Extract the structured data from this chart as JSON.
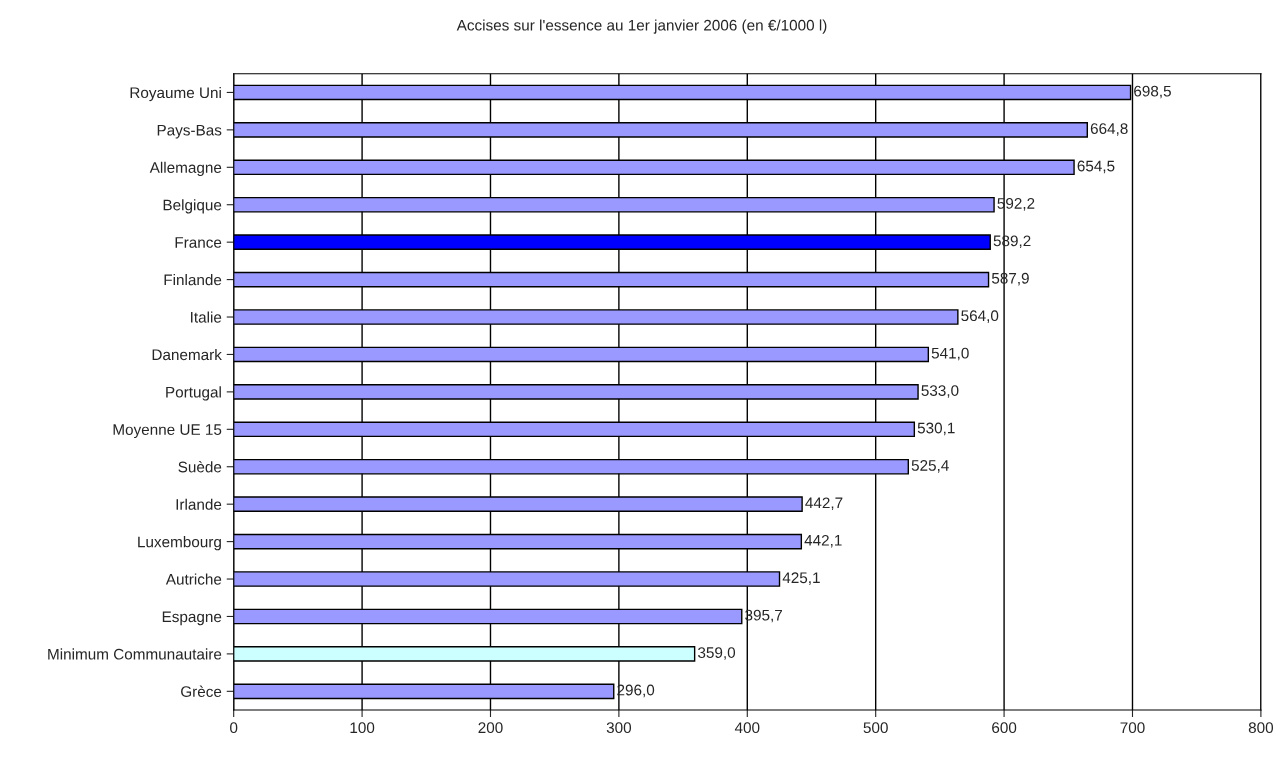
{
  "chart_data": {
    "type": "bar",
    "orientation": "horizontal",
    "title": "Accises sur l'essence au 1er janvier 2006 (en €/1000 l)",
    "categories": [
      "Royaume Uni",
      "Pays-Bas",
      "Allemagne",
      "Belgique",
      "France",
      "Finlande",
      "Italie",
      "Danemark",
      "Portugal",
      "Moyenne UE 15",
      "Suède",
      "Irlande",
      "Luxembourg",
      "Autriche",
      "Espagne",
      "Minimum Communautaire",
      "Grèce"
    ],
    "values": [
      698.5,
      664.8,
      654.5,
      592.2,
      589.2,
      587.9,
      564.0,
      541.0,
      533.0,
      530.1,
      525.4,
      442.7,
      442.1,
      425.1,
      395.7,
      359.0,
      296.0
    ],
    "value_labels": [
      "698,5",
      "664,8",
      "654,5",
      "592,2",
      "589,2",
      "587,9",
      "564,0",
      "541,0",
      "533,0",
      "530,1",
      "525,4",
      "442,7",
      "442,1",
      "425,1",
      "395,7",
      "359,0",
      "296,0"
    ],
    "colors": [
      "#9999ff",
      "#9999ff",
      "#9999ff",
      "#9999ff",
      "#0000ff",
      "#9999ff",
      "#9999ff",
      "#9999ff",
      "#9999ff",
      "#9999ff",
      "#9999ff",
      "#9999ff",
      "#9999ff",
      "#9999ff",
      "#9999ff",
      "#ccffff",
      "#9999ff"
    ],
    "xlim": [
      0,
      800
    ],
    "xticks": [
      0,
      100,
      200,
      300,
      400,
      500,
      600,
      700,
      800
    ],
    "grid": "x",
    "legend": false
  }
}
